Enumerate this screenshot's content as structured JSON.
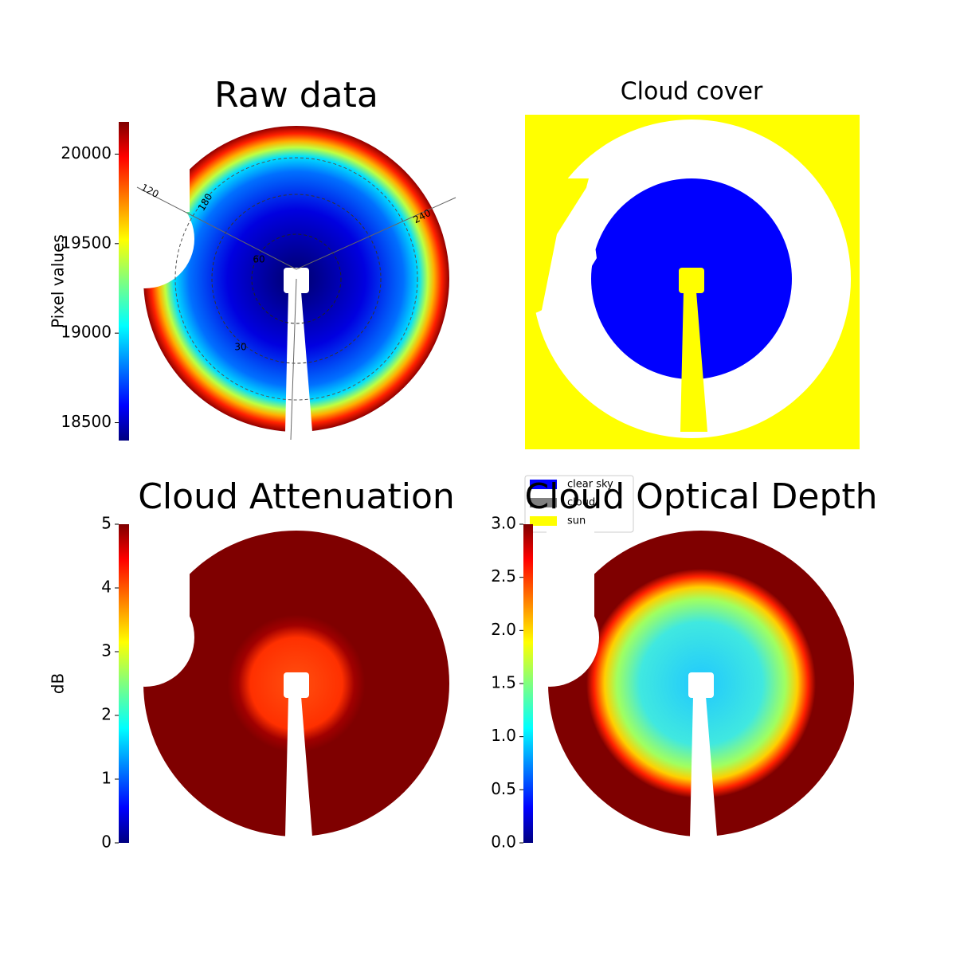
{
  "chart_data": [
    {
      "type": "image",
      "title": "Raw data",
      "colorbar_label": "Pixel values",
      "colormap": "jet",
      "clim": [
        18400,
        20180
      ],
      "cticks": [
        18500,
        19000,
        19500,
        20000
      ],
      "polar_labels": [
        "120",
        "180",
        "240",
        "60",
        "30"
      ]
    },
    {
      "type": "image",
      "title": "Cloud cover",
      "legend": [
        {
          "name": "clear sky",
          "color": "#0000ff"
        },
        {
          "name": "cloud",
          "color": "#808080"
        },
        {
          "name": "sun",
          "color": "#ffff00"
        }
      ]
    },
    {
      "type": "image",
      "title": "Cloud Attenuation",
      "colorbar_label": "dB",
      "colormap": "jet",
      "clim": [
        0,
        5
      ],
      "cticks": [
        0,
        1,
        2,
        3,
        4,
        5
      ]
    },
    {
      "type": "image",
      "title": "Cloud Optical Depth",
      "colormap": "jet",
      "clim": [
        0,
        3
      ],
      "cticks": [
        {
          "value": 0,
          "label": "0.0"
        },
        {
          "value": 0.5,
          "label": "0.5"
        },
        {
          "value": 1,
          "label": "1.0"
        },
        {
          "value": 1.5,
          "label": "1.5"
        },
        {
          "value": 2,
          "label": "2.0"
        },
        {
          "value": 2.5,
          "label": "2.5"
        },
        {
          "value": 3,
          "label": "3.0"
        }
      ]
    }
  ]
}
